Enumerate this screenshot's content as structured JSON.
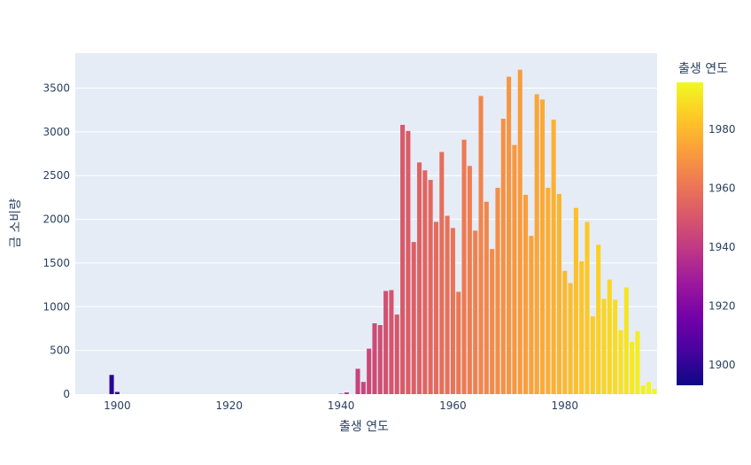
{
  "chart_data": {
    "type": "bar",
    "xlabel": "출생 연도",
    "ylabel": "금 소비량",
    "xlim": [
      1892.5,
      1996.5
    ],
    "ylim": [
      0,
      3900
    ],
    "x_ticks": [
      1900,
      1920,
      1940,
      1960,
      1980
    ],
    "y_ticks": [
      0,
      500,
      1000,
      1500,
      2000,
      2500,
      3000,
      3500
    ],
    "grid": true,
    "colorbar": {
      "title": "출생 연도",
      "range": [
        1893,
        1996
      ],
      "ticks": [
        1900,
        1920,
        1940,
        1960,
        1980
      ],
      "colorscale": [
        "#0d0887",
        "#46039f",
        "#7201a8",
        "#9c179e",
        "#bd3786",
        "#d8576b",
        "#ed7953",
        "#fb9f3a",
        "#fdca26",
        "#f0f921"
      ]
    },
    "x": [
      1899,
      1900,
      1940,
      1941,
      1943,
      1944,
      1945,
      1946,
      1947,
      1948,
      1949,
      1950,
      1951,
      1952,
      1953,
      1954,
      1955,
      1956,
      1957,
      1958,
      1959,
      1960,
      1961,
      1962,
      1963,
      1964,
      1965,
      1966,
      1967,
      1968,
      1969,
      1970,
      1971,
      1972,
      1973,
      1974,
      1975,
      1976,
      1977,
      1978,
      1979,
      1980,
      1981,
      1982,
      1983,
      1984,
      1985,
      1986,
      1987,
      1988,
      1989,
      1990,
      1991,
      1992,
      1993,
      1994,
      1995,
      1996
    ],
    "values": [
      220,
      25,
      5,
      20,
      290,
      140,
      520,
      810,
      790,
      1180,
      1190,
      910,
      3080,
      3010,
      1740,
      2650,
      2560,
      2450,
      1970,
      2770,
      2040,
      1900,
      1170,
      2910,
      2610,
      1870,
      3410,
      2200,
      1660,
      2360,
      3150,
      3630,
      2850,
      3710,
      2280,
      1810,
      3430,
      3370,
      2360,
      3140,
      2290,
      1410,
      1270,
      2130,
      1520,
      1970,
      890,
      1710,
      1090,
      1310,
      1080,
      730,
      1220,
      600,
      720,
      100,
      140,
      60
    ]
  }
}
